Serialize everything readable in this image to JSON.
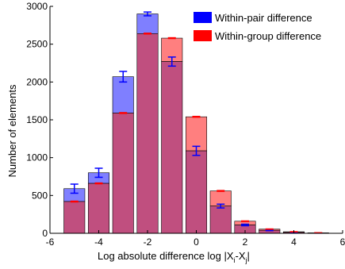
{
  "chart_data": {
    "type": "bar",
    "title": "",
    "xlabel": "Log absolute difference log |X",
    "xlabel_sub_i": "i",
    "xlabel_dash": "-X",
    "xlabel_sub_j": "j",
    "xlabel_end": "|",
    "ylabel": "Number of elements",
    "xlim": [
      -6,
      6
    ],
    "ylim": [
      0,
      3000
    ],
    "xticks": [
      -6,
      -4,
      -2,
      0,
      2,
      4,
      6
    ],
    "yticks": [
      0,
      500,
      1000,
      1500,
      2000,
      2500,
      3000
    ],
    "xtick_labels": [
      "-6",
      "-4",
      "-2",
      "0",
      "2",
      "4",
      "6"
    ],
    "ytick_labels": [
      "0",
      "500",
      "1000",
      "1500",
      "2000",
      "2500",
      "3000"
    ],
    "bin_centers": [
      -5,
      -4,
      -3,
      -2,
      -1,
      0,
      1,
      2,
      3,
      4,
      5
    ],
    "bin_width": 0.86,
    "series": [
      {
        "name": "Within-pair difference",
        "color": "#0000ff",
        "fill": "#7f7fff",
        "values": [
          590,
          800,
          2070,
          2900,
          2270,
          1090,
          360,
          110,
          40,
          12,
          3
        ],
        "errors": [
          60,
          60,
          70,
          25,
          60,
          60,
          25,
          10,
          5,
          2,
          1
        ]
      },
      {
        "name": "Within-group difference",
        "color": "#ff0000",
        "fill": "#ff7f7f",
        "values": [
          420,
          660,
          1590,
          2640,
          2580,
          1540,
          560,
          160,
          55,
          20,
          6
        ],
        "errors": [
          5,
          5,
          5,
          5,
          5,
          5,
          5,
          3,
          2,
          1,
          1
        ]
      }
    ],
    "overlap_color": "#c04f7f",
    "legend_position": "top-right"
  }
}
